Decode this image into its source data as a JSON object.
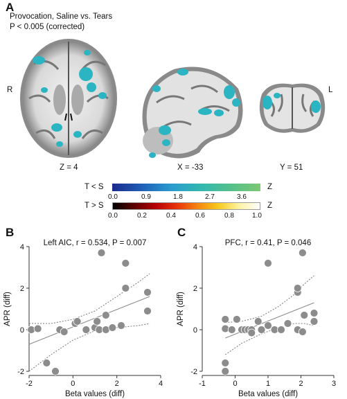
{
  "panel_a": {
    "letter": "A",
    "title": "Provocation, Saline vs. Tears",
    "threshold": "P < 0.005 (corrected)",
    "side_right": "R",
    "side_left": "L",
    "slices": [
      {
        "label": "Z = 4",
        "view": "axial"
      },
      {
        "label": "X = -33",
        "view": "sagittal"
      },
      {
        "label": "Y = 51",
        "view": "coronal"
      }
    ],
    "colorbars": [
      {
        "label": "T < S",
        "end_label": "Z",
        "ticks": [
          "0.0",
          "0.9",
          "1.8",
          "2.7",
          "3.6"
        ],
        "colors": [
          "#1b2a8c",
          "#1f5fb8",
          "#2a9ccf",
          "#33b8b0",
          "#55c08a",
          "#7cc874"
        ]
      },
      {
        "label": "T > S",
        "end_label": "Z",
        "ticks": [
          "0.0",
          "0.2",
          "0.4",
          "0.6",
          "0.8",
          "1.0"
        ],
        "colors": [
          "#000000",
          "#5a0000",
          "#b40000",
          "#e8300a",
          "#f4820f",
          "#f8c81a",
          "#fff3a0",
          "#ffffff"
        ]
      }
    ],
    "cluster_color": "#2bb4c2"
  },
  "panel_b": {
    "letter": "B",
    "title": "Left AIC, r = 0.534, P = 0.007"
  },
  "panel_c": {
    "letter": "C",
    "title": "PFC, r = 0.41, P = 0.046"
  },
  "chart_data": [
    {
      "type": "scatter",
      "title": "Left AIC, r = 0.534, P = 0.007",
      "xlabel": "Beta values (diff)",
      "ylabel": "APR (diff)",
      "xlim": [
        -2,
        4
      ],
      "ylim": [
        -2,
        4
      ],
      "xticks": [
        "-2",
        "0",
        "2",
        "4"
      ],
      "yticks": [
        "4",
        "2",
        "0",
        "-2"
      ],
      "grid": false,
      "points": [
        [
          -1.9,
          0.0
        ],
        [
          -1.6,
          0.05
        ],
        [
          -1.2,
          -1.6
        ],
        [
          -0.8,
          -2.0
        ],
        [
          -0.6,
          0.0
        ],
        [
          -0.4,
          -0.1
        ],
        [
          0.1,
          0.3
        ],
        [
          0.2,
          0.4
        ],
        [
          0.6,
          0.0
        ],
        [
          1.0,
          0.1
        ],
        [
          1.1,
          0.4
        ],
        [
          1.2,
          0.0
        ],
        [
          1.3,
          3.7
        ],
        [
          1.5,
          0.0
        ],
        [
          1.5,
          0.7
        ],
        [
          1.8,
          0.1
        ],
        [
          2.2,
          0.2
        ],
        [
          2.4,
          2.0
        ],
        [
          2.4,
          3.2
        ],
        [
          3.4,
          0.9
        ],
        [
          3.4,
          1.8
        ]
      ],
      "fit": {
        "x": [
          -2,
          3.5
        ],
        "y": [
          -0.7,
          1.6
        ]
      },
      "ci_upper": {
        "x": [
          -2,
          -1,
          0,
          1,
          2,
          3,
          3.5
        ],
        "y": [
          0.3,
          0.3,
          0.5,
          0.9,
          1.6,
          2.3,
          2.7
        ]
      },
      "ci_lower": {
        "x": [
          -2,
          -1,
          0,
          1,
          2,
          3,
          3.5
        ],
        "y": [
          -2.0,
          -1.2,
          -0.5,
          -0.05,
          0.1,
          0.2,
          0.3
        ]
      }
    },
    {
      "type": "scatter",
      "title": "PFC, r = 0.41, P = 0.046",
      "xlabel": "Beta values (diff)",
      "ylabel": "APR (diff)",
      "xlim": [
        -1,
        3
      ],
      "ylim": [
        -2,
        4
      ],
      "xticks": [
        "-1",
        "0",
        "1",
        "2",
        "3"
      ],
      "yticks": [
        "4",
        "2",
        "0",
        "-2"
      ],
      "grid": false,
      "points": [
        [
          -0.3,
          -2.0
        ],
        [
          -0.3,
          -1.6
        ],
        [
          -0.3,
          0.05
        ],
        [
          -0.3,
          0.5
        ],
        [
          -0.1,
          0.0
        ],
        [
          0.05,
          0.5
        ],
        [
          0.2,
          0.0
        ],
        [
          0.3,
          0.0
        ],
        [
          0.4,
          0.0
        ],
        [
          0.5,
          0.0
        ],
        [
          0.5,
          -0.15
        ],
        [
          0.7,
          0.4
        ],
        [
          0.8,
          0.0
        ],
        [
          1.0,
          0.2
        ],
        [
          1.0,
          3.2
        ],
        [
          1.2,
          0.0
        ],
        [
          1.4,
          0.0
        ],
        [
          1.6,
          0.3
        ],
        [
          1.9,
          0.0
        ],
        [
          1.9,
          1.8
        ],
        [
          1.9,
          2.0
        ],
        [
          2.05,
          -0.1
        ],
        [
          2.05,
          3.7
        ],
        [
          2.1,
          0.7
        ],
        [
          2.4,
          0.4
        ],
        [
          2.4,
          0.8
        ]
      ],
      "fit": {
        "x": [
          -0.3,
          2.4
        ],
        "y": [
          -0.4,
          1.3
        ]
      },
      "ci_upper": {
        "x": [
          -0.3,
          0.2,
          0.8,
          1.3,
          1.8,
          2.1,
          2.4
        ],
        "y": [
          0.35,
          0.4,
          0.65,
          1.1,
          1.7,
          2.2,
          2.6
        ]
      },
      "ci_lower": {
        "x": [
          -0.3,
          0.2,
          0.8,
          1.3,
          1.8,
          2.1,
          2.4
        ],
        "y": [
          -1.2,
          -0.65,
          -0.2,
          0.1,
          0.3,
          0.3,
          0.2
        ]
      }
    }
  ]
}
